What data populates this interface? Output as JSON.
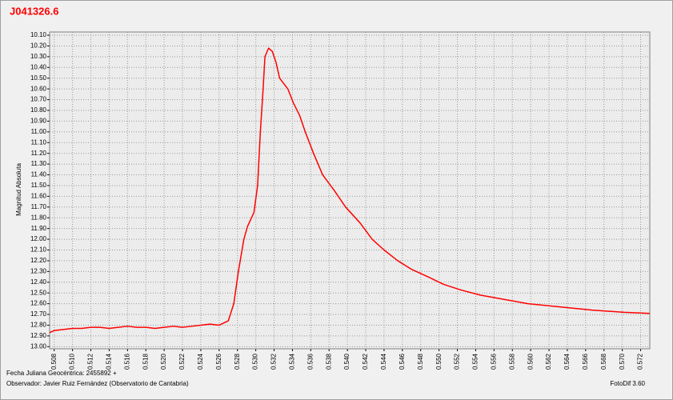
{
  "chart_data": {
    "type": "line",
    "title": "J041326.6",
    "y_label": "Magnitud Absoluta",
    "footer_date": "Fecha Juliana Geocéntrica: 2455892 +",
    "footer_observer": "Observador: Javier Ruiz Fernández (Observatorio de Cantabria)",
    "footer_software": "FotoDif 3.60",
    "color": "#ff0000",
    "grid": true,
    "y_inverted": true,
    "xlim": [
      0.5075,
      0.573
    ],
    "ylim": [
      10.07,
      13.02
    ],
    "xticks": [
      0.508,
      {
        "value": 0.51,
        "label": "0.510"
      },
      0.512,
      0.514,
      0.516,
      0.518,
      {
        "value": 0.52,
        "label": "0.520"
      },
      0.522,
      0.524,
      0.526,
      0.528,
      {
        "value": 0.53,
        "label": "0.530"
      },
      0.532,
      0.534,
      0.536,
      0.538,
      {
        "value": 0.54,
        "label": "0.540"
      },
      0.542,
      0.544,
      0.546,
      0.548,
      {
        "value": 0.55,
        "label": "0.550"
      },
      0.552,
      0.554,
      0.556,
      0.558,
      {
        "value": 0.56,
        "label": "0.560"
      },
      0.562,
      0.564,
      0.566,
      0.568,
      {
        "value": 0.57,
        "label": "0.570"
      },
      0.572
    ],
    "yticks": [
      {
        "value": 10.1,
        "label": "10.10"
      },
      {
        "value": 10.2,
        "label": "10.20"
      },
      {
        "value": 10.3,
        "label": "10.30"
      },
      {
        "value": 10.4,
        "label": "10.40"
      },
      {
        "value": 10.5,
        "label": "10.50"
      },
      {
        "value": 10.6,
        "label": "10.60"
      },
      {
        "value": 10.7,
        "label": "10.70"
      },
      {
        "value": 10.8,
        "label": "10.80"
      },
      {
        "value": 10.9,
        "label": "10.90"
      },
      {
        "value": 11.0,
        "label": "11.00"
      },
      {
        "value": 11.1,
        "label": "11.10"
      },
      {
        "value": 11.2,
        "label": "11.20"
      },
      {
        "value": 11.3,
        "label": "11.30"
      },
      {
        "value": 11.4,
        "label": "11.40"
      },
      {
        "value": 11.5,
        "label": "11.50"
      },
      {
        "value": 11.6,
        "label": "11.60"
      },
      {
        "value": 11.7,
        "label": "11.70"
      },
      {
        "value": 11.8,
        "label": "11.80"
      },
      {
        "value": 11.9,
        "label": "11.90"
      },
      {
        "value": 12.0,
        "label": "12.00"
      },
      {
        "value": 12.1,
        "label": "12.10"
      },
      {
        "value": 12.2,
        "label": "12.20"
      },
      {
        "value": 12.3,
        "label": "12.30"
      },
      {
        "value": 12.4,
        "label": "12.40"
      },
      {
        "value": 12.5,
        "label": "12.50"
      },
      {
        "value": 12.6,
        "label": "12.60"
      },
      {
        "value": 12.7,
        "label": "12.70"
      },
      {
        "value": 12.8,
        "label": "12.80"
      },
      {
        "value": 12.9,
        "label": "12.90"
      },
      {
        "value": 13.0,
        "label": "13.00"
      }
    ],
    "x": [
      0.5075,
      0.508,
      0.509,
      0.51,
      0.511,
      0.512,
      0.513,
      0.514,
      0.515,
      0.516,
      0.517,
      0.518,
      0.519,
      0.52,
      0.521,
      0.522,
      0.523,
      0.524,
      0.525,
      0.526,
      0.527,
      0.5276,
      0.5281,
      0.5287,
      0.5291,
      0.5298,
      0.5302,
      0.5305,
      0.5308,
      0.531,
      0.5314,
      0.5318,
      0.5322,
      0.5326,
      0.5335,
      0.5341,
      0.5348,
      0.5354,
      0.5363,
      0.5373,
      0.5386,
      0.5398,
      0.5414,
      0.5427,
      0.544,
      0.5455,
      0.547,
      0.5488,
      0.5505,
      0.5523,
      0.5545,
      0.5571,
      0.5597,
      0.5632,
      0.5667,
      0.5702,
      0.573
    ],
    "values": [
      12.87,
      12.85,
      12.84,
      12.83,
      12.83,
      12.82,
      12.82,
      12.83,
      12.82,
      12.81,
      12.82,
      12.82,
      12.83,
      12.82,
      12.81,
      12.82,
      12.81,
      12.8,
      12.79,
      12.8,
      12.76,
      12.6,
      12.3,
      12.0,
      11.88,
      11.75,
      11.5,
      11.0,
      10.6,
      10.3,
      10.22,
      10.25,
      10.35,
      10.5,
      10.6,
      10.73,
      10.85,
      11.0,
      11.2,
      11.4,
      11.55,
      11.7,
      11.85,
      12.0,
      12.1,
      12.2,
      12.28,
      12.35,
      12.42,
      12.47,
      12.52,
      12.56,
      12.6,
      12.63,
      12.66,
      12.68,
      12.69
    ]
  }
}
